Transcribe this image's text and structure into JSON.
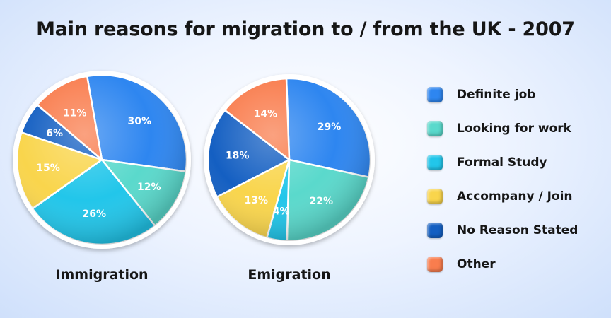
{
  "title": "Main reasons for migration to / from the UK - 2007",
  "chart_data": {
    "type": "pie",
    "categories": [
      "Definite job",
      "Looking for work",
      "Formal Study",
      "Accompany / Join",
      "No Reason Stated",
      "Other"
    ],
    "colors": [
      "#2e86f0",
      "#5ad9cc",
      "#22c6ea",
      "#f9d54c",
      "#145fc2",
      "#f97d4e"
    ],
    "legend_position": "right",
    "charts": [
      {
        "name": "Immigration",
        "values": [
          30,
          12,
          26,
          15,
          6,
          11
        ],
        "labels": [
          "30%",
          "12%",
          "26%",
          "15%",
          "6%",
          "11%"
        ]
      },
      {
        "name": "Emigration",
        "values": [
          29,
          22,
          4,
          13,
          18,
          14
        ],
        "labels": [
          "29%",
          "22%",
          "4%",
          "13%",
          "18%",
          "14%"
        ]
      }
    ]
  }
}
